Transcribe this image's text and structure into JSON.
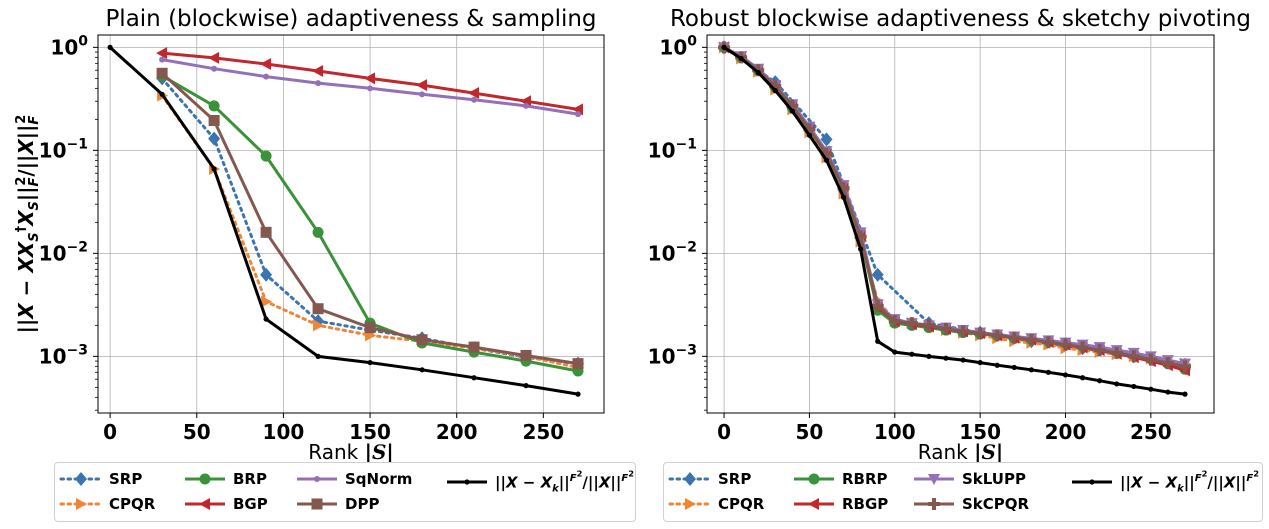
{
  "chart_data": [
    {
      "type": "line",
      "title": "Plain (blockwise) adaptiveness & sampling",
      "xlabel": "Rank |S|",
      "ylabel": "||X − XX_S^† X_S||_F^2 / ||X||_F^2",
      "xlim": [
        -7,
        285
      ],
      "ylim_log10": [
        -3.55,
        0.12
      ],
      "y_scale": "log",
      "grid": true,
      "xticks": [
        0,
        50,
        100,
        150,
        200,
        250
      ],
      "yticks": [
        {
          "value": 1,
          "label": "10^0"
        },
        {
          "value": 0.1,
          "label": "10^-1"
        },
        {
          "value": 0.01,
          "label": "10^-2"
        },
        {
          "value": 0.001,
          "label": "10^-3"
        }
      ],
      "series": [
        {
          "name": "SRP",
          "color": "#3b75af",
          "dash": "dot",
          "marker": "diamond",
          "x": [
            30,
            60,
            90,
            120,
            150,
            180,
            210,
            240,
            270
          ],
          "y": [
            0.5,
            0.13,
            0.0062,
            0.0022,
            0.0018,
            0.0015,
            0.0012,
            0.00098,
            0.00085
          ]
        },
        {
          "name": "CPQR",
          "color": "#ef8636",
          "dash": "dot",
          "marker": "triangle-right",
          "x": [
            30,
            60,
            90,
            120,
            150,
            180,
            210,
            240,
            270
          ],
          "y": [
            0.34,
            0.066,
            0.0034,
            0.002,
            0.0016,
            0.0014,
            0.0012,
            0.001,
            0.00078
          ]
        },
        {
          "name": "BRP",
          "color": "#3a923a",
          "dash": "solid",
          "marker": "circle",
          "x": [
            30,
            60,
            90,
            120,
            150,
            180,
            210,
            240,
            270
          ],
          "y": [
            0.53,
            0.27,
            0.088,
            0.016,
            0.0021,
            0.00135,
            0.0011,
            0.0009,
            0.00072
          ]
        },
        {
          "name": "BGP",
          "color": "#c0282e",
          "dash": "solid",
          "marker": "triangle-left",
          "x": [
            30,
            60,
            90,
            120,
            150,
            180,
            210,
            240,
            270
          ],
          "y": [
            0.88,
            0.79,
            0.69,
            0.59,
            0.5,
            0.43,
            0.36,
            0.3,
            0.25
          ]
        },
        {
          "name": "SqNorm",
          "color": "#9470b9",
          "dash": "solid",
          "marker": "small-circle",
          "x": [
            30,
            60,
            90,
            120,
            150,
            180,
            210,
            240,
            270
          ],
          "y": [
            0.76,
            0.62,
            0.52,
            0.45,
            0.4,
            0.35,
            0.31,
            0.27,
            0.225
          ]
        },
        {
          "name": "DPP",
          "color": "#84584e",
          "dash": "solid",
          "marker": "square",
          "x": [
            30,
            60,
            90,
            120,
            150,
            180,
            210,
            240,
            270
          ],
          "y": [
            0.56,
            0.195,
            0.016,
            0.0029,
            0.0019,
            0.00145,
            0.00123,
            0.00102,
            0.00085
          ]
        },
        {
          "name": "||X − X_k||_F^2 / ||X||_F^2",
          "color": "#000000",
          "dash": "solid",
          "marker": "dot",
          "x": [
            0,
            30,
            60,
            90,
            120,
            150,
            180,
            210,
            240,
            270
          ],
          "y": [
            1.0,
            0.35,
            0.066,
            0.0023,
            0.001,
            0.00087,
            0.00074,
            0.00062,
            0.00052,
            0.00043
          ]
        }
      ]
    },
    {
      "type": "line",
      "title": "Robust blockwise adaptiveness & sketchy pivoting",
      "xlabel": "Rank |S|",
      "ylabel": "",
      "xlim": [
        -10,
        287
      ],
      "ylim_log10": [
        -3.55,
        0.12
      ],
      "y_scale": "log",
      "grid": true,
      "xticks": [
        0,
        50,
        100,
        150,
        200,
        250
      ],
      "yticks": [
        {
          "value": 1,
          "label": "10^0"
        },
        {
          "value": 0.1,
          "label": "10^-1"
        },
        {
          "value": 0.01,
          "label": "10^-2"
        },
        {
          "value": 0.001,
          "label": "10^-3"
        }
      ],
      "series": [
        {
          "name": "SRP",
          "color": "#3b75af",
          "dash": "dot",
          "marker": "diamond",
          "x": [
            0,
            30,
            60,
            90,
            120,
            150,
            180,
            210,
            240,
            270
          ],
          "y": [
            1.0,
            0.46,
            0.128,
            0.0062,
            0.0021,
            0.0017,
            0.0014,
            0.0012,
            0.001,
            0.00083
          ]
        },
        {
          "name": "CPQR",
          "color": "#ef8636",
          "dash": "dot",
          "marker": "triangle-right",
          "x": [
            0,
            10,
            20,
            30,
            40,
            50,
            60,
            70,
            80,
            90,
            100,
            110,
            120,
            130,
            140,
            150,
            160,
            170,
            180,
            190,
            200,
            210,
            220,
            230,
            240,
            250,
            260,
            270
          ],
          "y": [
            1.0,
            0.78,
            0.58,
            0.39,
            0.25,
            0.15,
            0.085,
            0.038,
            0.013,
            0.0035,
            0.0022,
            0.0021,
            0.002,
            0.0018,
            0.0017,
            0.0016,
            0.0015,
            0.0014,
            0.00135,
            0.0013,
            0.0012,
            0.00115,
            0.0011,
            0.00105,
            0.001,
            0.00095,
            0.0009,
            0.00085
          ]
        },
        {
          "name": "RBRP",
          "color": "#3a923a",
          "dash": "solid",
          "marker": "circle",
          "x": [
            0,
            10,
            20,
            30,
            40,
            50,
            60,
            70,
            80,
            90,
            100,
            110,
            120,
            130,
            140,
            150,
            160,
            170,
            180,
            190,
            200,
            210,
            220,
            230,
            240,
            250,
            260,
            270
          ],
          "y": [
            1.0,
            0.8,
            0.6,
            0.41,
            0.26,
            0.16,
            0.092,
            0.042,
            0.014,
            0.0028,
            0.0021,
            0.002,
            0.0019,
            0.0018,
            0.0017,
            0.00165,
            0.0016,
            0.0015,
            0.00145,
            0.0014,
            0.00135,
            0.00125,
            0.0012,
            0.00112,
            0.00105,
            0.00095,
            0.00085,
            0.00075
          ]
        },
        {
          "name": "RBGP",
          "color": "#c0282e",
          "dash": "solid",
          "marker": "triangle-left",
          "x": [
            0,
            10,
            20,
            30,
            40,
            50,
            60,
            70,
            80,
            90,
            100,
            110,
            120,
            130,
            140,
            150,
            160,
            170,
            180,
            190,
            200,
            210,
            220,
            230,
            240,
            250,
            260,
            270
          ],
          "y": [
            1.0,
            0.81,
            0.61,
            0.42,
            0.27,
            0.165,
            0.095,
            0.044,
            0.015,
            0.003,
            0.0022,
            0.00205,
            0.00195,
            0.00185,
            0.00175,
            0.00168,
            0.0016,
            0.00152,
            0.00145,
            0.00138,
            0.0013,
            0.00122,
            0.00115,
            0.00106,
            0.00098,
            0.0009,
            0.00082,
            0.00073
          ]
        },
        {
          "name": "SkLUPP",
          "color": "#9470b9",
          "dash": "solid",
          "marker": "triangle-down",
          "x": [
            0,
            10,
            20,
            30,
            40,
            50,
            60,
            70,
            80,
            90,
            100,
            110,
            120,
            130,
            140,
            150,
            160,
            170,
            180,
            190,
            200,
            210,
            220,
            230,
            240,
            250,
            260,
            270
          ],
          "y": [
            1.0,
            0.82,
            0.62,
            0.43,
            0.28,
            0.17,
            0.098,
            0.046,
            0.016,
            0.0032,
            0.0023,
            0.0021,
            0.002,
            0.0019,
            0.0018,
            0.0017,
            0.00163,
            0.00156,
            0.0015,
            0.00143,
            0.00136,
            0.0013,
            0.00123,
            0.00115,
            0.00108,
            0.001,
            0.00092,
            0.00085
          ]
        },
        {
          "name": "SkCPQR",
          "color": "#84584e",
          "dash": "solid",
          "marker": "plus",
          "x": [
            0,
            10,
            20,
            30,
            40,
            50,
            60,
            70,
            80,
            90,
            100,
            110,
            120,
            130,
            140,
            150,
            160,
            170,
            180,
            190,
            200,
            210,
            220,
            230,
            240,
            250,
            260,
            270
          ],
          "y": [
            1.0,
            0.8,
            0.6,
            0.42,
            0.27,
            0.16,
            0.093,
            0.043,
            0.0145,
            0.0031,
            0.0022,
            0.0021,
            0.002,
            0.00185,
            0.00175,
            0.00167,
            0.0016,
            0.00152,
            0.00145,
            0.00137,
            0.0013,
            0.00122,
            0.00115,
            0.00108,
            0.001,
            0.00093,
            0.00086,
            0.0008
          ]
        },
        {
          "name": "||X − X_k||_F^2 / ||X||_F^2",
          "color": "#000000",
          "dash": "solid",
          "marker": "dot",
          "x": [
            0,
            10,
            20,
            30,
            40,
            50,
            60,
            70,
            80,
            90,
            100,
            110,
            120,
            130,
            140,
            150,
            160,
            170,
            180,
            190,
            200,
            210,
            220,
            230,
            240,
            250,
            260,
            270
          ],
          "y": [
            1.0,
            0.78,
            0.57,
            0.38,
            0.24,
            0.14,
            0.08,
            0.035,
            0.011,
            0.0014,
            0.0011,
            0.00105,
            0.001,
            0.00096,
            0.00092,
            0.00087,
            0.00082,
            0.00078,
            0.00074,
            0.0007,
            0.00066,
            0.00062,
            0.00058,
            0.00054,
            0.00051,
            0.00048,
            0.00045,
            0.00043
          ]
        }
      ]
    }
  ]
}
